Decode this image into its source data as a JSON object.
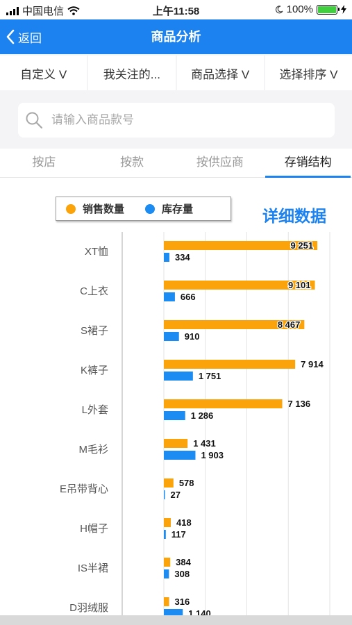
{
  "status_bar": {
    "carrier": "中国电信",
    "time": "上午11:58",
    "battery": "100%"
  },
  "nav": {
    "back_label": "返回",
    "title": "商品分析"
  },
  "filters": [
    {
      "label": "自定义 V"
    },
    {
      "label": "我关注的..."
    },
    {
      "label": "商品选择 V"
    },
    {
      "label": "选择排序 V"
    }
  ],
  "search": {
    "placeholder": "请输入商品款号",
    "value": ""
  },
  "tabs": [
    {
      "label": "按店",
      "active": false
    },
    {
      "label": "按款",
      "active": false
    },
    {
      "label": "按供应商",
      "active": false
    },
    {
      "label": "存销结构",
      "active": true
    }
  ],
  "detail_link": "详细数据",
  "colors": {
    "accent": "#1b82f0",
    "sales": "#fba30a",
    "stock": "#1c8bf2",
    "battery": "#3fcf3f"
  },
  "chart_data": {
    "type": "bar",
    "orientation": "horizontal",
    "categories": [
      "XT恤",
      "C上衣",
      "S裙子",
      "K裤子",
      "L外套",
      "M毛衫",
      "E吊带背心",
      "H帽子",
      "IS半裙",
      "D羽绒服"
    ],
    "series": [
      {
        "name": "销售数量",
        "values": [
          9251,
          9101,
          8467,
          7914,
          7136,
          1431,
          578,
          418,
          384,
          316
        ],
        "labels": [
          "9 251",
          "9 101",
          "8 467",
          "7 914",
          "7 136",
          "1 431",
          "578",
          "418",
          "384",
          "316"
        ]
      },
      {
        "name": "库存量",
        "values": [
          334,
          666,
          910,
          1751,
          1286,
          1903,
          27,
          117,
          308,
          1140
        ],
        "labels": [
          "334",
          "666",
          "910",
          "1 751",
          "1 286",
          "1 903",
          "27",
          "117",
          "308",
          "1 140"
        ]
      }
    ],
    "xlim": [
      0,
      10000
    ],
    "grid": true,
    "legend": "top"
  }
}
